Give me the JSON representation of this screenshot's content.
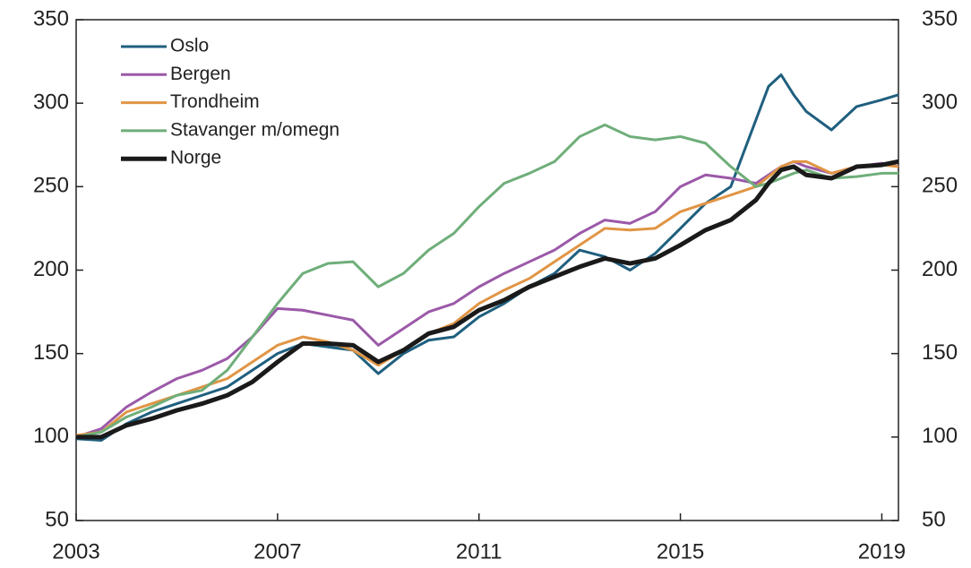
{
  "chart_data": {
    "type": "line",
    "x": [
      2003,
      2003.5,
      2004,
      2004.5,
      2005,
      2005.5,
      2006,
      2006.5,
      2007,
      2007.5,
      2008,
      2008.5,
      2009,
      2009.5,
      2010,
      2010.5,
      2011,
      2011.5,
      2012,
      2012.5,
      2013,
      2013.5,
      2014,
      2014.5,
      2015,
      2015.5,
      2016,
      2016.5,
      2016.75,
      2017,
      2017.25,
      2017.5,
      2018,
      2018.5,
      2019,
      2019.33
    ],
    "series": [
      {
        "name": "Oslo",
        "color": "#1f5f7f",
        "values": [
          99,
          98,
          108,
          115,
          120,
          125,
          130,
          140,
          150,
          156,
          154,
          152,
          138,
          150,
          158,
          160,
          172,
          180,
          190,
          198,
          212,
          208,
          200,
          210,
          225,
          240,
          250,
          290,
          310,
          317,
          305,
          295,
          284,
          298,
          302,
          305
        ]
      },
      {
        "name": "Bergen",
        "color": "#9b59a8",
        "values": [
          100,
          105,
          118,
          127,
          135,
          140,
          147,
          160,
          177,
          176,
          173,
          170,
          155,
          165,
          175,
          180,
          190,
          198,
          205,
          212,
          222,
          230,
          228,
          235,
          250,
          257,
          255,
          252,
          257,
          262,
          265,
          262,
          258,
          262,
          264,
          262
        ]
      },
      {
        "name": "Trondheim",
        "color": "#e09545",
        "values": [
          101,
          103,
          115,
          120,
          125,
          130,
          135,
          145,
          155,
          160,
          157,
          152,
          143,
          152,
          162,
          168,
          180,
          188,
          195,
          205,
          215,
          225,
          224,
          225,
          235,
          240,
          245,
          250,
          256,
          262,
          265,
          265,
          258,
          262,
          263,
          262
        ]
      },
      {
        "name": "Stavanger m/omegn",
        "color": "#6fae7a",
        "values": [
          100,
          103,
          112,
          118,
          125,
          128,
          140,
          160,
          180,
          198,
          204,
          205,
          190,
          198,
          212,
          222,
          238,
          252,
          258,
          265,
          280,
          287,
          280,
          278,
          280,
          276,
          262,
          250,
          252,
          255,
          258,
          260,
          255,
          256,
          258,
          258
        ]
      },
      {
        "name": "Norge",
        "color": "#1a1a1a",
        "values": [
          100,
          100,
          107,
          111,
          116,
          120,
          125,
          133,
          145,
          156,
          156,
          155,
          145,
          152,
          162,
          166,
          176,
          182,
          190,
          196,
          202,
          207,
          204,
          207,
          215,
          224,
          230,
          242,
          252,
          260,
          262,
          257,
          255,
          262,
          263,
          265
        ]
      }
    ],
    "xlim": [
      2003,
      2019.33
    ],
    "xticks": [
      2003,
      2007,
      2011,
      2015,
      2019
    ],
    "ylim": [
      50,
      350
    ],
    "yticks": [
      50,
      100,
      150,
      200,
      250,
      300,
      350
    ],
    "y2lim": [
      50,
      350
    ],
    "y2ticks": [
      50,
      100,
      150,
      200,
      250,
      300,
      350
    ]
  }
}
